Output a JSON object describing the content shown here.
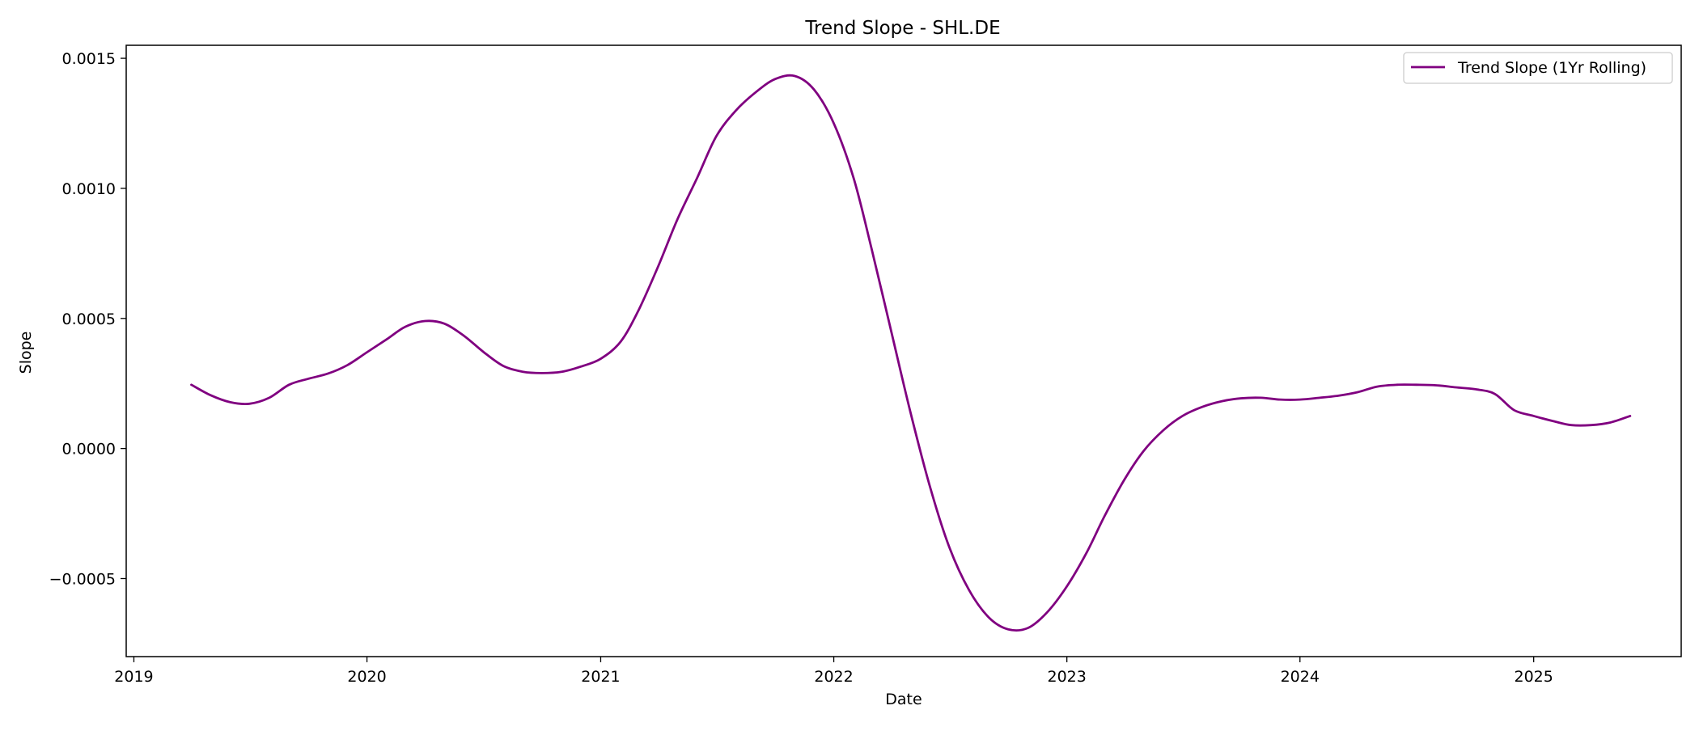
{
  "chart_data": {
    "type": "line",
    "title": "Trend Slope - SHL.DE",
    "xlabel": "Date",
    "ylabel": "Slope",
    "xlim": [
      "2018-12-20",
      "2025-08-20"
    ],
    "ylim": [
      -0.0008,
      0.00155
    ],
    "x_ticks": [
      {
        "value": "2019-01-01",
        "label": "2019"
      },
      {
        "value": "2020-01-01",
        "label": "2020"
      },
      {
        "value": "2021-01-01",
        "label": "2021"
      },
      {
        "value": "2022-01-01",
        "label": "2022"
      },
      {
        "value": "2023-01-01",
        "label": "2023"
      },
      {
        "value": "2024-01-01",
        "label": "2024"
      },
      {
        "value": "2025-01-01",
        "label": "2025"
      }
    ],
    "y_ticks": [
      {
        "value": -0.0005,
        "label": "−0.0005"
      },
      {
        "value": 0.0,
        "label": "0.0000"
      },
      {
        "value": 0.0005,
        "label": "0.0005"
      },
      {
        "value": 0.001,
        "label": "0.0010"
      },
      {
        "value": 0.0015,
        "label": "0.0015"
      }
    ],
    "grid": false,
    "legend_position": "top-right",
    "series": [
      {
        "name": "Trend Slope (1Yr Rolling)",
        "color": "#800080",
        "points": [
          [
            "2019-04-01",
            0.000245
          ],
          [
            "2019-05-01",
            0.000205
          ],
          [
            "2019-06-01",
            0.000178
          ],
          [
            "2019-07-01",
            0.000172
          ],
          [
            "2019-08-01",
            0.000195
          ],
          [
            "2019-09-01",
            0.000245
          ],
          [
            "2019-10-01",
            0.000268
          ],
          [
            "2019-11-01",
            0.000288
          ],
          [
            "2019-12-01",
            0.00032
          ],
          [
            "2020-01-01",
            0.00037
          ],
          [
            "2020-02-01",
            0.00042
          ],
          [
            "2020-03-01",
            0.000468
          ],
          [
            "2020-04-01",
            0.00049
          ],
          [
            "2020-05-01",
            0.00048
          ],
          [
            "2020-06-01",
            0.000433
          ],
          [
            "2020-07-01",
            0.000372
          ],
          [
            "2020-08-01",
            0.000318
          ],
          [
            "2020-09-01",
            0.000295
          ],
          [
            "2020-10-01",
            0.00029
          ],
          [
            "2020-11-01",
            0.000295
          ],
          [
            "2020-12-01",
            0.000315
          ],
          [
            "2021-01-01",
            0.000345
          ],
          [
            "2021-02-01",
            0.00041
          ],
          [
            "2021-03-01",
            0.00053
          ],
          [
            "2021-04-01",
            0.0007
          ],
          [
            "2021-05-01",
            0.00088
          ],
          [
            "2021-06-01",
            0.00104
          ],
          [
            "2021-07-01",
            0.0012
          ],
          [
            "2021-08-01",
            0.0013
          ],
          [
            "2021-09-01",
            0.00137
          ],
          [
            "2021-10-01",
            0.00142
          ],
          [
            "2021-11-01",
            0.001432
          ],
          [
            "2021-12-01",
            0.00138
          ],
          [
            "2022-01-01",
            0.00125
          ],
          [
            "2022-02-01",
            0.00104
          ],
          [
            "2022-03-01",
            0.00077
          ],
          [
            "2022-04-01",
            0.00045
          ],
          [
            "2022-05-01",
            0.00014
          ],
          [
            "2022-06-01",
            -0.00015
          ],
          [
            "2022-07-01",
            -0.00038
          ],
          [
            "2022-08-01",
            -0.000545
          ],
          [
            "2022-09-01",
            -0.00065
          ],
          [
            "2022-10-01",
            -0.000695
          ],
          [
            "2022-11-01",
            -0.00069
          ],
          [
            "2022-12-01",
            -0.00063
          ],
          [
            "2023-01-01",
            -0.00053
          ],
          [
            "2023-02-01",
            -0.0004
          ],
          [
            "2023-03-01",
            -0.00026
          ],
          [
            "2023-04-01",
            -0.00012
          ],
          [
            "2023-05-01",
            -1e-05
          ],
          [
            "2023-06-01",
            7e-05
          ],
          [
            "2023-07-01",
            0.000125
          ],
          [
            "2023-08-01",
            0.00016
          ],
          [
            "2023-09-01",
            0.000182
          ],
          [
            "2023-10-01",
            0.000193
          ],
          [
            "2023-11-01",
            0.000195
          ],
          [
            "2023-12-01",
            0.000188
          ],
          [
            "2024-01-01",
            0.000188
          ],
          [
            "2024-02-01",
            0.000195
          ],
          [
            "2024-03-01",
            0.000203
          ],
          [
            "2024-04-01",
            0.000217
          ],
          [
            "2024-05-01",
            0.000238
          ],
          [
            "2024-06-01",
            0.000245
          ],
          [
            "2024-07-01",
            0.000245
          ],
          [
            "2024-08-01",
            0.000243
          ],
          [
            "2024-09-01",
            0.000235
          ],
          [
            "2024-10-01",
            0.000228
          ],
          [
            "2024-11-01",
            0.00021
          ],
          [
            "2024-12-01",
            0.000148
          ],
          [
            "2025-01-01",
            0.000125
          ],
          [
            "2025-02-01",
            0.000105
          ],
          [
            "2025-03-01",
            9e-05
          ],
          [
            "2025-04-01",
            9e-05
          ],
          [
            "2025-05-01",
            0.0001
          ],
          [
            "2025-06-01",
            0.000125
          ]
        ]
      }
    ]
  }
}
